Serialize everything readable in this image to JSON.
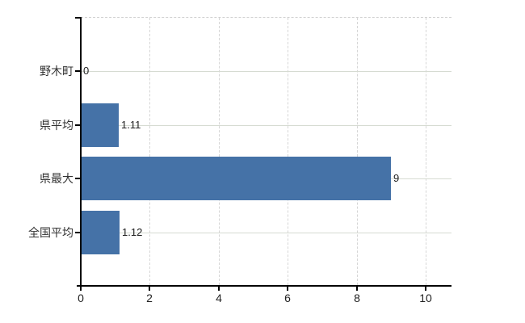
{
  "chart_data": {
    "type": "bar",
    "orientation": "horizontal",
    "title": "",
    "xlabel": "",
    "ylabel": "",
    "categories": [
      "野木町",
      "県平均",
      "県最大",
      "全国平均"
    ],
    "values": [
      0,
      1.11,
      9,
      1.12
    ],
    "value_labels": [
      "0",
      "1.11",
      "9",
      "1.12"
    ],
    "x_ticks": [
      "0",
      "2",
      "4",
      "6",
      "8",
      "10"
    ],
    "x_tick_values": [
      0,
      2,
      4,
      6,
      8,
      10
    ],
    "xlim": [
      0,
      10.75
    ],
    "grid": "on",
    "legend_position": "none",
    "colors": {
      "bar": "#4572a7",
      "grid_horizontal": "#d6dbd2",
      "grid_vertical": "#d6d6d6",
      "plot_top_border": "#d0d0d0",
      "axis": "#000000",
      "category_label": "#333333",
      "value_label": "#222222",
      "tick_label": "#222222",
      "background": "#ffffff"
    }
  }
}
